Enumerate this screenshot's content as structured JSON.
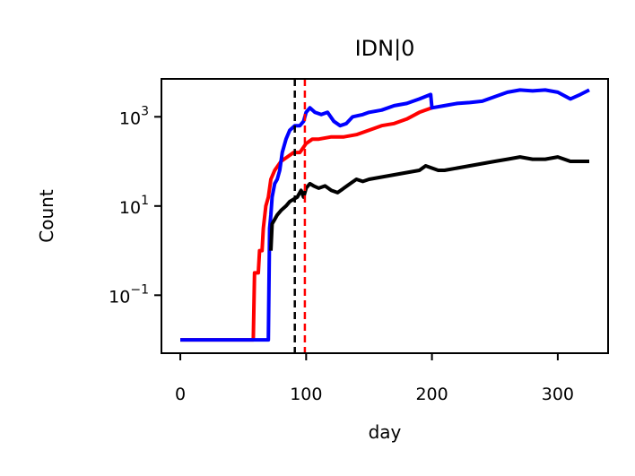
{
  "chart_data": {
    "type": "line",
    "title": "IDN|0",
    "xlabel": "day",
    "ylabel": "Count",
    "xlim": [
      -15,
      340
    ],
    "ylim_log10": [
      -2.3,
      3.85
    ],
    "yscale": "log",
    "x_ticks": [
      {
        "value": 0,
        "label": "0"
      },
      {
        "value": 100,
        "label": "100"
      },
      {
        "value": 200,
        "label": "200"
      },
      {
        "value": 300,
        "label": "300"
      }
    ],
    "y_ticks": [
      {
        "log10": -1,
        "base": "10",
        "exp": "−1"
      },
      {
        "log10": 1,
        "base": "10",
        "exp": "1"
      },
      {
        "log10": 3,
        "base": "10",
        "exp": "3"
      }
    ],
    "grid": false,
    "legend": "none",
    "vlines": [
      {
        "x": 91,
        "color": "#000000",
        "style": "dashed"
      },
      {
        "x": 99,
        "color": "#ff0000",
        "style": "dashed"
      }
    ],
    "series": [
      {
        "color": "#ff0000",
        "points": [
          [
            0,
            -2
          ],
          [
            58,
            -2
          ],
          [
            59,
            -0.5
          ],
          [
            62,
            -0.5
          ],
          [
            63,
            0
          ],
          [
            65,
            0
          ],
          [
            66,
            0.5
          ],
          [
            68,
            1
          ],
          [
            70,
            1.2
          ],
          [
            72,
            1.6
          ],
          [
            75,
            1.8
          ],
          [
            80,
            2.0
          ],
          [
            85,
            2.1
          ],
          [
            90,
            2.2
          ],
          [
            95,
            2.2
          ],
          [
            100,
            2.4
          ],
          [
            105,
            2.5
          ],
          [
            110,
            2.5
          ],
          [
            120,
            2.55
          ],
          [
            130,
            2.55
          ],
          [
            140,
            2.6
          ],
          [
            150,
            2.7
          ],
          [
            160,
            2.8
          ],
          [
            170,
            2.85
          ],
          [
            180,
            2.95
          ],
          [
            190,
            3.1
          ],
          [
            195,
            3.15
          ],
          [
            200,
            3.2
          ]
        ]
      },
      {
        "color": "#0000ff",
        "points": [
          [
            0,
            -2
          ],
          [
            70,
            -2
          ],
          [
            71,
            0.5
          ],
          [
            72,
            0.8
          ],
          [
            73,
            1.2
          ],
          [
            75,
            1.5
          ],
          [
            77,
            1.6
          ],
          [
            79,
            1.8
          ],
          [
            81,
            2.2
          ],
          [
            84,
            2.5
          ],
          [
            87,
            2.7
          ],
          [
            91,
            2.8
          ],
          [
            95,
            2.8
          ],
          [
            98,
            2.9
          ],
          [
            100,
            3.1
          ],
          [
            103,
            3.2
          ],
          [
            107,
            3.1
          ],
          [
            112,
            3.05
          ],
          [
            117,
            3.1
          ],
          [
            122,
            2.9
          ],
          [
            127,
            2.8
          ],
          [
            132,
            2.85
          ],
          [
            137,
            3.0
          ],
          [
            145,
            3.05
          ],
          [
            150,
            3.1
          ],
          [
            160,
            3.15
          ],
          [
            170,
            3.25
          ],
          [
            180,
            3.3
          ],
          [
            190,
            3.4
          ],
          [
            199,
            3.5
          ],
          [
            200,
            3.2
          ],
          [
            210,
            3.25
          ],
          [
            220,
            3.3
          ],
          [
            230,
            3.32
          ],
          [
            240,
            3.35
          ],
          [
            250,
            3.45
          ],
          [
            260,
            3.55
          ],
          [
            270,
            3.6
          ],
          [
            280,
            3.58
          ],
          [
            290,
            3.6
          ],
          [
            300,
            3.55
          ],
          [
            310,
            3.4
          ],
          [
            318,
            3.5
          ],
          [
            325,
            3.6
          ]
        ]
      },
      {
        "color": "#000000",
        "points": [
          [
            72,
            0
          ],
          [
            73,
            0.6
          ],
          [
            75,
            0.7
          ],
          [
            77,
            0.8
          ],
          [
            80,
            0.9
          ],
          [
            84,
            1
          ],
          [
            87,
            1.1
          ],
          [
            90,
            1.15
          ],
          [
            93,
            1.2
          ],
          [
            96,
            1.35
          ],
          [
            98,
            1.2
          ],
          [
            100,
            1.4
          ],
          [
            103,
            1.5
          ],
          [
            106,
            1.45
          ],
          [
            110,
            1.4
          ],
          [
            115,
            1.45
          ],
          [
            120,
            1.35
          ],
          [
            125,
            1.3
          ],
          [
            130,
            1.4
          ],
          [
            135,
            1.5
          ],
          [
            140,
            1.6
          ],
          [
            145,
            1.55
          ],
          [
            150,
            1.6
          ],
          [
            160,
            1.65
          ],
          [
            170,
            1.7
          ],
          [
            180,
            1.75
          ],
          [
            190,
            1.8
          ],
          [
            195,
            1.9
          ],
          [
            200,
            1.85
          ],
          [
            205,
            1.8
          ],
          [
            210,
            1.8
          ],
          [
            220,
            1.85
          ],
          [
            230,
            1.9
          ],
          [
            240,
            1.95
          ],
          [
            250,
            2.0
          ],
          [
            260,
            2.05
          ],
          [
            270,
            2.1
          ],
          [
            280,
            2.05
          ],
          [
            290,
            2.05
          ],
          [
            300,
            2.1
          ],
          [
            310,
            2.0
          ],
          [
            320,
            2.0
          ],
          [
            325,
            2.0
          ]
        ]
      }
    ]
  }
}
